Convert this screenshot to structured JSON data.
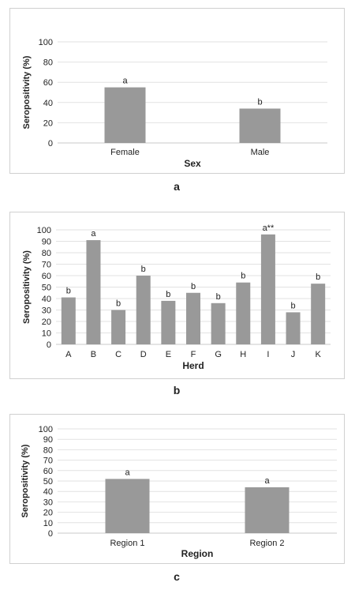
{
  "chart_data": [
    {
      "type": "bar",
      "categories": [
        "Female",
        "Male"
      ],
      "values": [
        55,
        34
      ],
      "letters": [
        "a",
        "b"
      ],
      "ylabel": "Seropositivity (%)",
      "xlabel": "Sex",
      "ylim": [
        0,
        100
      ],
      "yticks": [
        0,
        20,
        40,
        60,
        80,
        100
      ],
      "grid": true,
      "bar_color": "#999999",
      "caption": "a"
    },
    {
      "type": "bar",
      "categories": [
        "A",
        "B",
        "C",
        "D",
        "E",
        "F",
        "G",
        "H",
        "I",
        "J",
        "K"
      ],
      "values": [
        41,
        91,
        30,
        60,
        38,
        45,
        36,
        54,
        96,
        28,
        53
      ],
      "letters": [
        "b",
        "a",
        "b",
        "b",
        "b",
        "b",
        "b",
        "b",
        "a**",
        "b",
        "b"
      ],
      "ylabel": "Seropositivity (%)",
      "xlabel": "Herd",
      "ylim": [
        0,
        100
      ],
      "yticks": [
        0,
        10,
        20,
        30,
        40,
        50,
        60,
        70,
        80,
        90,
        100
      ],
      "grid": true,
      "bar_color": "#999999",
      "caption": "b"
    },
    {
      "type": "bar",
      "categories": [
        "Region 1",
        "Region 2"
      ],
      "values": [
        52,
        44
      ],
      "letters": [
        "a",
        "a"
      ],
      "ylabel": "Seropositivity (%)",
      "xlabel": "Region",
      "ylim": [
        0,
        100
      ],
      "yticks": [
        0,
        10,
        20,
        30,
        40,
        50,
        60,
        70,
        80,
        90,
        100
      ],
      "grid": true,
      "bar_color": "#999999",
      "caption": "c"
    }
  ]
}
